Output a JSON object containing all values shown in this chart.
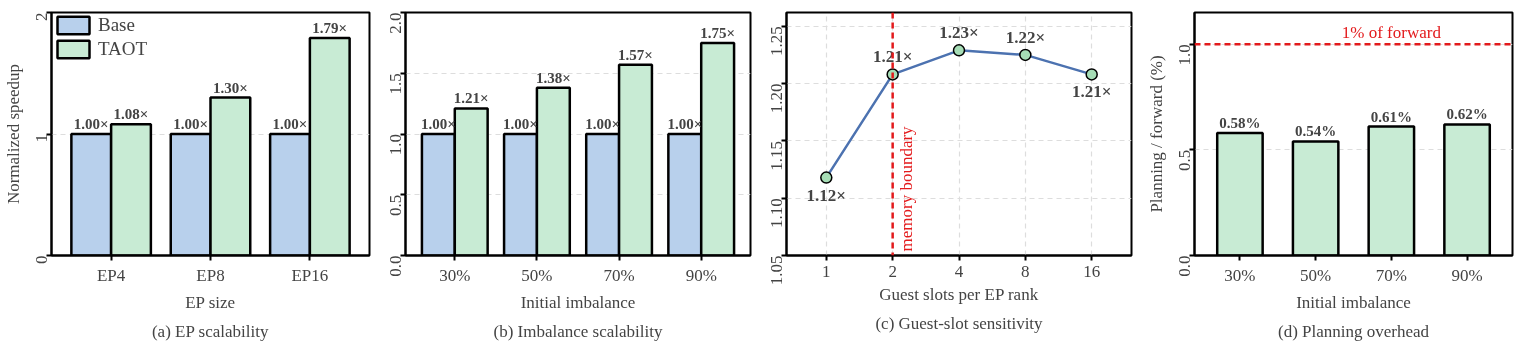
{
  "chart_data": [
    {
      "type": "bar",
      "title": "(a) EP scalability",
      "xlabel": "EP size",
      "ylabel": "Normalized speedup",
      "categories": [
        "EP4",
        "EP8",
        "EP16"
      ],
      "series": [
        {
          "name": "Base",
          "color": "#b8d0ec",
          "values": [
            1.0,
            1.0,
            1.0
          ],
          "value_labels": [
            "1.00×",
            "1.00×",
            "1.00×"
          ]
        },
        {
          "name": "TAOT",
          "color": "#c8ebd4",
          "values": [
            1.08,
            1.3,
            1.79
          ],
          "value_labels": [
            "1.08×",
            "1.30×",
            "1.79×"
          ]
        }
      ],
      "ylim": [
        0,
        2
      ],
      "yticks": [
        0,
        1,
        2
      ],
      "grid": "y",
      "legend": "top left"
    },
    {
      "type": "bar",
      "title": "(b) Imbalance scalability",
      "xlabel": "Initial imbalance",
      "categories": [
        "30%",
        "50%",
        "70%",
        "90%"
      ],
      "series": [
        {
          "color": "#b8d0ec",
          "values": [
            1.0,
            1.0,
            1.0,
            1.0
          ],
          "value_labels": [
            "1.00×",
            "1.00×",
            "1.00×",
            "1.00×"
          ]
        },
        {
          "color": "#c8ebd4",
          "values": [
            1.21,
            1.38,
            1.57,
            1.75
          ],
          "value_labels": [
            "1.21×",
            "1.38×",
            "1.57×",
            "1.75×"
          ]
        }
      ],
      "ylim": [
        0,
        2
      ],
      "yticks": [
        {
          "value": 0,
          "label": "0.0"
        },
        {
          "value": 0.5,
          "label": "0.5"
        },
        {
          "value": 1,
          "label": "1.0"
        },
        {
          "value": 1.5,
          "label": "1.5"
        },
        {
          "value": 2,
          "label": "2.0"
        }
      ],
      "grid": "y"
    },
    {
      "type": "line",
      "title": "(c) Guest-slot sensitivity",
      "xlabel": "Guest slots per EP rank",
      "categories": [
        "1",
        "2",
        "4",
        "8",
        "16"
      ],
      "series": [
        {
          "color": "#4c72b0",
          "values": [
            1.118,
            1.208,
            1.229,
            1.225,
            1.208
          ],
          "value_labels": [
            "1.12×",
            "1.21×",
            "1.23×",
            "1.22×",
            "1.21×"
          ]
        }
      ],
      "ylim": [
        1.05,
        1.262
      ],
      "yticks": [
        {
          "value": 1.05,
          "label": "1.05"
        },
        {
          "value": 1.1,
          "label": "1.10"
        },
        {
          "value": 1.15,
          "label": "1.15"
        },
        {
          "value": 1.2,
          "label": "1.20"
        },
        {
          "value": 1.25,
          "label": "1.25"
        }
      ],
      "grid": true,
      "marker": "circle",
      "line_style": "solid",
      "ref_lines": [
        {
          "axis": "x",
          "value": "2",
          "label": "memory boundary",
          "color": "#e31a1c",
          "line_style": "dashed"
        }
      ]
    },
    {
      "type": "bar",
      "title": "(d) Planning overhead",
      "xlabel": "Initial imbalance",
      "ylabel": "Planning / forward (%)",
      "categories": [
        "30%",
        "50%",
        "70%",
        "90%"
      ],
      "series": [
        {
          "color": "#c8ebd4",
          "values": [
            0.58,
            0.54,
            0.61,
            0.62
          ],
          "value_labels": [
            "0.58%",
            "0.54%",
            "0.61%",
            "0.62%"
          ]
        }
      ],
      "ylim": [
        0,
        1.15
      ],
      "yticks": [
        {
          "value": 0,
          "label": "0.0"
        },
        {
          "value": 0.5,
          "label": "0.5"
        },
        {
          "value": 1,
          "label": "1.0"
        }
      ],
      "grid": "y",
      "ref_lines": [
        {
          "axis": "y",
          "value": 1.0,
          "label": "1% of forward",
          "color": "#e31a1c",
          "line_style": "dashed"
        }
      ]
    }
  ]
}
